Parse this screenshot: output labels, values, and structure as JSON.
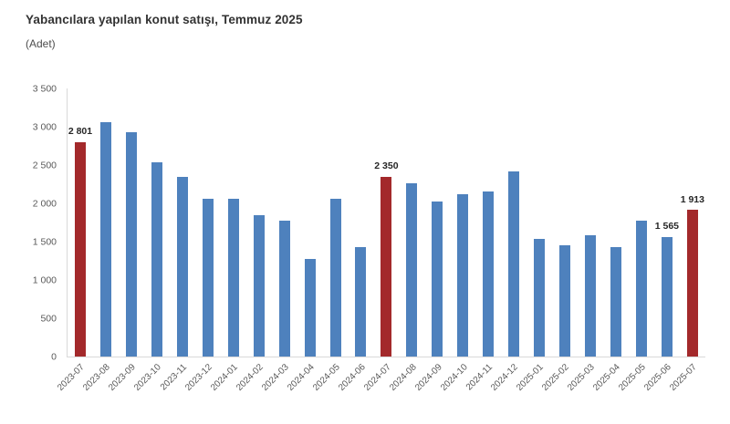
{
  "header": {
    "title": "Yabancılara yapılan konut satışı, Temmuz 2025",
    "subtitle": "(Adet)"
  },
  "chart_data": {
    "type": "bar",
    "title": "Yabancılara yapılan konut satışı, Temmuz 2025",
    "subtitle": "(Adet)",
    "xlabel": "",
    "ylabel": "(Adet)",
    "categories": [
      "2023-07",
      "2023-08",
      "2023-09",
      "2023-10",
      "2023-11",
      "2023-12",
      "2024-01",
      "2024-02",
      "2024-03",
      "2024-04",
      "2024-05",
      "2024-06",
      "2024-07",
      "2024-08",
      "2024-09",
      "2024-10",
      "2024-11",
      "2024-12",
      "2025-01",
      "2025-02",
      "2025-03",
      "2025-04",
      "2025-05",
      "2025-06",
      "2025-07"
    ],
    "values": [
      2801,
      3060,
      2930,
      2540,
      2340,
      2060,
      2060,
      1840,
      1770,
      1270,
      2060,
      1430,
      2350,
      2260,
      2020,
      2120,
      2160,
      2420,
      1540,
      1450,
      1580,
      1430,
      1770,
      1565,
      1913
    ],
    "highlight_indices": [
      0,
      12,
      24
    ],
    "data_labels": {
      "0": "2 801",
      "12": "2 350",
      "23": "1 565",
      "24": "1 913"
    },
    "y_ticks": [
      0,
      500,
      1000,
      1500,
      2000,
      2500,
      3000,
      3500
    ],
    "y_tick_labels": [
      "0",
      "500",
      "1 000",
      "1 500",
      "2 000",
      "2 500",
      "3 000",
      "3 500"
    ],
    "ylim": [
      0,
      3500
    ],
    "grid": false,
    "legend": "none",
    "colors": {
      "bar": "#4E81BD",
      "highlight": "#A3292B",
      "axis_line": "#D9D9D9",
      "tick_text": "#595959",
      "value_label_text": "#262626"
    }
  }
}
